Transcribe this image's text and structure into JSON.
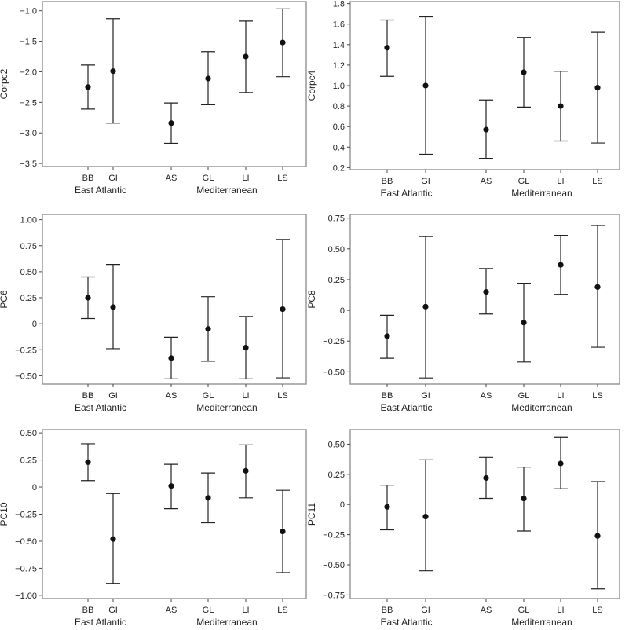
{
  "chart_data": [
    {
      "type": "errorbar",
      "ylabel": "Corpc2",
      "ylim": [
        -3.55,
        -0.85
      ],
      "yticks": [
        -3.5,
        -3.0,
        -2.5,
        -2.0,
        -1.5,
        -1.0
      ],
      "ytick_labels": [
        "−3.5",
        "−3.0",
        "−2.5",
        "−2.0",
        "−1.5",
        "−1.0"
      ],
      "categories": [
        "BB",
        "GI",
        "AS",
        "GL",
        "LI",
        "LS"
      ],
      "groups": [
        {
          "name": "East Atlantic",
          "categories": [
            "BB",
            "GI"
          ]
        },
        {
          "name": "Mediterranean",
          "categories": [
            "AS",
            "GL",
            "LI",
            "LS"
          ]
        }
      ],
      "mean": [
        -2.25,
        -1.99,
        -2.84,
        -2.11,
        -1.75,
        -1.52
      ],
      "lower": [
        -2.61,
        -2.84,
        -3.17,
        -2.54,
        -2.34,
        -2.08
      ],
      "upper": [
        -1.89,
        -1.13,
        -2.51,
        -1.67,
        -1.17,
        -0.97
      ]
    },
    {
      "type": "errorbar",
      "ylabel": "Corpc4",
      "ylim": [
        0.18,
        1.82
      ],
      "yticks": [
        0.2,
        0.4,
        0.6,
        0.8,
        1.0,
        1.2,
        1.4,
        1.6,
        1.8
      ],
      "ytick_labels": [
        "0.2",
        "0.4",
        "0.6",
        "0.8",
        "1.0",
        "1.2",
        "1.4",
        "1.6",
        "1.8"
      ],
      "categories": [
        "BB",
        "GI",
        "AS",
        "GL",
        "LI",
        "LS"
      ],
      "groups": [
        {
          "name": "East Atlantic",
          "categories": [
            "BB",
            "GI"
          ]
        },
        {
          "name": "Mediterranean",
          "categories": [
            "AS",
            "GL",
            "LI",
            "LS"
          ]
        }
      ],
      "mean": [
        1.37,
        1.0,
        0.57,
        1.13,
        0.8,
        0.98
      ],
      "lower": [
        1.09,
        0.33,
        0.29,
        0.79,
        0.46,
        0.44
      ],
      "upper": [
        1.64,
        1.67,
        0.86,
        1.47,
        1.14,
        1.52
      ]
    },
    {
      "type": "errorbar",
      "ylabel": "PC6",
      "ylim": [
        -0.58,
        1.05
      ],
      "yticks": [
        -0.5,
        -0.25,
        0,
        0.25,
        0.5,
        0.75,
        1.0
      ],
      "ytick_labels": [
        "−0.50",
        "−0.25",
        "0",
        "0.25",
        "0.50",
        "0.75",
        "1.00"
      ],
      "categories": [
        "BB",
        "GI",
        "AS",
        "GL",
        "LI",
        "LS"
      ],
      "groups": [
        {
          "name": "East Atlantic",
          "categories": [
            "BB",
            "GI"
          ]
        },
        {
          "name": "Mediterranean",
          "categories": [
            "AS",
            "GL",
            "LI",
            "LS"
          ]
        }
      ],
      "mean": [
        0.25,
        0.16,
        -0.33,
        -0.05,
        -0.23,
        0.14
      ],
      "lower": [
        0.05,
        -0.24,
        -0.53,
        -0.36,
        -0.53,
        -0.52
      ],
      "upper": [
        0.45,
        0.57,
        -0.13,
        0.26,
        0.07,
        0.81
      ]
    },
    {
      "type": "errorbar",
      "ylabel": "PC8",
      "ylim": [
        -0.6,
        0.78
      ],
      "yticks": [
        -0.5,
        -0.25,
        0,
        0.25,
        0.5,
        0.75
      ],
      "ytick_labels": [
        "−0.50",
        "−0.25",
        "0",
        "0.25",
        "0.50",
        "0.75"
      ],
      "categories": [
        "BB",
        "GI",
        "AS",
        "GL",
        "LI",
        "LS"
      ],
      "groups": [
        {
          "name": "East Atlantic",
          "categories": [
            "BB",
            "GI"
          ]
        },
        {
          "name": "Mediterranean",
          "categories": [
            "AS",
            "GL",
            "LI",
            "LS"
          ]
        }
      ],
      "mean": [
        -0.21,
        0.03,
        0.15,
        -0.1,
        0.37,
        0.19
      ],
      "lower": [
        -0.39,
        -0.55,
        -0.03,
        -0.42,
        0.13,
        -0.3
      ],
      "upper": [
        -0.04,
        0.6,
        0.34,
        0.22,
        0.61,
        0.69
      ]
    },
    {
      "type": "errorbar",
      "ylabel": "PC10",
      "ylim": [
        -1.03,
        0.53
      ],
      "yticks": [
        -1.0,
        -0.75,
        -0.5,
        -0.25,
        0,
        0.25,
        0.5
      ],
      "ytick_labels": [
        "−1.00",
        "−0.75",
        "−0.50",
        "−0.25",
        "0",
        "0.25",
        "0.50"
      ],
      "categories": [
        "BB",
        "GI",
        "AS",
        "GL",
        "LI",
        "LS"
      ],
      "groups": [
        {
          "name": "East Atlantic",
          "categories": [
            "BB",
            "GI"
          ]
        },
        {
          "name": "Mediterranean",
          "categories": [
            "AS",
            "GL",
            "LI",
            "LS"
          ]
        }
      ],
      "mean": [
        0.23,
        -0.48,
        0.01,
        -0.1,
        0.15,
        -0.41
      ],
      "lower": [
        0.06,
        -0.89,
        -0.2,
        -0.33,
        -0.1,
        -0.79
      ],
      "upper": [
        0.4,
        -0.06,
        0.21,
        0.13,
        0.39,
        -0.03
      ]
    },
    {
      "type": "errorbar",
      "ylabel": "PC11",
      "ylim": [
        -0.78,
        0.62
      ],
      "yticks": [
        -0.75,
        -0.5,
        -0.25,
        0,
        0.25,
        0.5
      ],
      "ytick_labels": [
        "−0.75",
        "−0.50",
        "−0.25",
        "0",
        "0.25",
        "0.50"
      ],
      "categories": [
        "BB",
        "GI",
        "AS",
        "GL",
        "LI",
        "LS"
      ],
      "groups": [
        {
          "name": "East Atlantic",
          "categories": [
            "BB",
            "GI"
          ]
        },
        {
          "name": "Mediterranean",
          "categories": [
            "AS",
            "GL",
            "LI",
            "LS"
          ]
        }
      ],
      "mean": [
        -0.02,
        -0.1,
        0.22,
        0.05,
        0.34,
        -0.26
      ],
      "lower": [
        -0.21,
        -0.55,
        0.05,
        -0.22,
        0.13,
        -0.7
      ],
      "upper": [
        0.16,
        0.37,
        0.39,
        0.31,
        0.56,
        0.19
      ]
    }
  ]
}
